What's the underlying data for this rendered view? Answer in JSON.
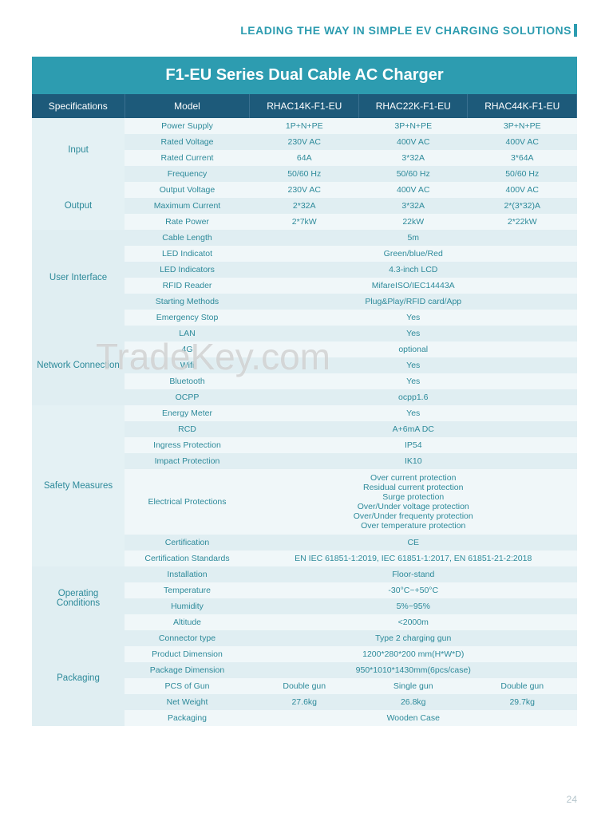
{
  "header": "LEADING THE WAY IN SIMPLE EV CHARGING SOLUTIONS",
  "title": "F1-EU Series Dual Cable AC Charger",
  "watermark": "TradeKey.com",
  "page_num": "24",
  "columns": {
    "spec": "Specifications",
    "model": "Model",
    "m1": "RHAC14K-F1-EU",
    "m2": "RHAC22K-F1-EU",
    "m3": "RHAC44K-F1-EU"
  },
  "input": {
    "cat": "Input",
    "power_supply": {
      "l": "Power Supply",
      "v1": "1P+N+PE",
      "v2": "3P+N+PE",
      "v3": "3P+N+PE"
    },
    "rated_voltage": {
      "l": "Rated Voltage",
      "v1": "230V AC",
      "v2": "400V AC",
      "v3": "400V AC"
    },
    "rated_current": {
      "l": "Rated Current",
      "v1": "64A",
      "v2": "3*32A",
      "v3": "3*64A"
    },
    "frequency": {
      "l": "Frequency",
      "v1": "50/60 Hz",
      "v2": "50/60 Hz",
      "v3": "50/60 Hz"
    }
  },
  "output": {
    "cat": "Output",
    "output_voltage": {
      "l": "Output Voltage",
      "v1": "230V AC",
      "v2": "400V AC",
      "v3": "400V AC"
    },
    "maximum_current": {
      "l": "Maximum Current",
      "v1": "2*32A",
      "v2": "3*32A",
      "v3": "2*(3*32)A"
    },
    "rate_power": {
      "l": "Rate Power",
      "v1": "2*7kW",
      "v2": "22kW",
      "v3": "2*22kW"
    }
  },
  "ui": {
    "cat": "User Interface",
    "cable_length": {
      "l": "Cable Length",
      "v": "5m"
    },
    "led_indicatot": {
      "l": "LED Indicatot",
      "v": "Green/blue/Red"
    },
    "led_indicators": {
      "l": "LED Indicators",
      "v": "4.3-inch LCD"
    },
    "rfid_reader": {
      "l": "RFID Reader",
      "v": "MifareISO/IEC14443A"
    },
    "starting_methods": {
      "l": "Starting Methods",
      "v": "Plug&Play/RFID card/App"
    },
    "emergency_stop": {
      "l": "Emergency Stop",
      "v": "Yes"
    }
  },
  "network": {
    "cat": "Network Connection",
    "lan": {
      "l": "LAN",
      "v": "Yes"
    },
    "4g": {
      "l": "4G",
      "v": "optional"
    },
    "wifi": {
      "l": "Wifi",
      "v": "Yes"
    },
    "bluetooth": {
      "l": "Bluetooth",
      "v": "Yes"
    },
    "ocpp": {
      "l": "OCPP",
      "v": "ocpp1.6"
    }
  },
  "safety": {
    "cat": "Safety Measures",
    "energy_meter": {
      "l": "Energy Meter",
      "v": "Yes"
    },
    "rcd": {
      "l": "RCD",
      "v": "A+6mA DC"
    },
    "ingress": {
      "l": "Ingress Protection",
      "v": "IP54"
    },
    "impact": {
      "l": "Impact Protection",
      "v": "IK10"
    },
    "elec": {
      "l": "Electrical Protections",
      "lines": [
        "Over current protection",
        "Residual current protection",
        "Surge protection",
        "Over/Under voltage protection",
        "Over/Under frequenty protection",
        "Over temperature protection"
      ]
    },
    "cert": {
      "l": "Certification",
      "v": "CE"
    },
    "cert_std": {
      "l": "Certification Standards",
      "v": "EN IEC 61851-1:2019, IEC 61851-1:2017, EN 61851-21-2:2018"
    }
  },
  "operating": {
    "cat": "Operating Conditions",
    "installation": {
      "l": "Installation",
      "v": "Floor-stand"
    },
    "temperature": {
      "l": "Temperature",
      "v": "-30°C~+50°C"
    },
    "humidity": {
      "l": "Humidity",
      "v": "5%~95%"
    },
    "altitude": {
      "l": "Altitude",
      "v": "<2000m"
    }
  },
  "packaging": {
    "cat": "Packaging",
    "connector": {
      "l": "Connector type",
      "v": "Type 2 charging gun"
    },
    "product_dim": {
      "l": "Product Dimension",
      "v": "1200*280*200 mm(H*W*D)"
    },
    "package_dim": {
      "l": "Package Dimension",
      "v": "950*1010*1430mm(6pcs/case)"
    },
    "pcs_gun": {
      "l": "PCS of Gun",
      "v1": "Double gun",
      "v2": "Single gun",
      "v3": "Double gun"
    },
    "net_weight": {
      "l": "Net Weight",
      "v1": "27.6kg",
      "v2": "26.8kg",
      "v3": "29.7kg"
    },
    "packaging": {
      "l": "Packaging",
      "v": "Wooden Case"
    }
  },
  "styling": {
    "colors": {
      "accent": "#2d9cb0",
      "header_bg": "#1d5a7a",
      "row_odd": "#f0f7f9",
      "row_even": "#e0eef2",
      "cat_bg": "#e4f1f4",
      "text": "#2d8a9a",
      "page_num": "#b5c5cc"
    }
  }
}
